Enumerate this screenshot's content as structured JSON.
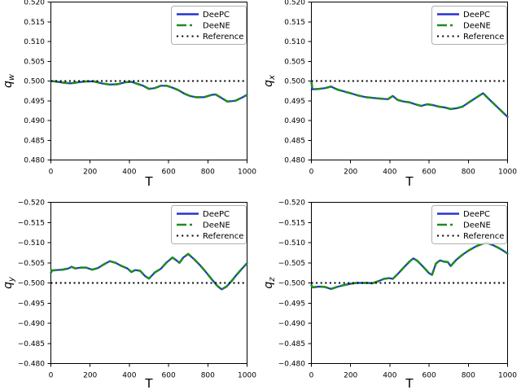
{
  "figure": {
    "xlabel": "T",
    "background": "#ffffff",
    "legend": {
      "position": "upper right",
      "entries": [
        {
          "label": "DeePC",
          "color": "#2434cf",
          "style": "solid"
        },
        {
          "label": "DeeNE",
          "color": "#1f8b24",
          "style": "dashed"
        },
        {
          "label": "Reference",
          "color": "#000000",
          "style": "dotted"
        }
      ]
    },
    "note": "DeePC and DeeNE trajectories overlap almost exactly in every subplot"
  },
  "chart_data": [
    {
      "type": "line",
      "id": "qw",
      "ylabel": {
        "base": "q",
        "sub": "w"
      },
      "xlabel": "T",
      "xlim": [
        0,
        1000
      ],
      "xticks": [
        0,
        200,
        400,
        600,
        800,
        1000
      ],
      "xtick_labels": [
        "0",
        "200",
        "400",
        "600",
        "800",
        "1000"
      ],
      "y_top": 0.52,
      "y_bottom": 0.48,
      "yticks": [
        0.52,
        0.515,
        0.51,
        0.505,
        0.5,
        0.495,
        0.49,
        0.485,
        0.48
      ],
      "ytick_labels": [
        "0.520",
        "0.515",
        "0.510",
        "0.505",
        "0.500",
        "0.495",
        "0.490",
        "0.485",
        "0.480"
      ],
      "reference_value": 0.5,
      "grid": false,
      "series": [
        {
          "name": "DeePC"
        },
        {
          "name": "DeeNE"
        }
      ],
      "x": [
        0,
        20,
        60,
        100,
        140,
        180,
        220,
        260,
        300,
        340,
        380,
        410,
        440,
        470,
        500,
        530,
        560,
        590,
        620,
        650,
        680,
        710,
        740,
        780,
        820,
        840,
        870,
        900,
        940,
        970,
        1000
      ],
      "trajectory": [
        0.5,
        0.4999,
        0.4996,
        0.4994,
        0.4997,
        0.4999,
        0.4999,
        0.4994,
        0.4991,
        0.4992,
        0.4997,
        0.4998,
        0.4993,
        0.4988,
        0.498,
        0.4982,
        0.4988,
        0.4988,
        0.4983,
        0.4977,
        0.4968,
        0.4962,
        0.4959,
        0.4959,
        0.4965,
        0.4966,
        0.4957,
        0.4948,
        0.495,
        0.4957,
        0.4965
      ]
    },
    {
      "type": "line",
      "id": "qx",
      "ylabel": {
        "base": "q",
        "sub": "x"
      },
      "xlabel": "T",
      "xlim": [
        0,
        1000
      ],
      "xticks": [
        0,
        200,
        400,
        600,
        800,
        1000
      ],
      "xtick_labels": [
        "0",
        "200",
        "400",
        "600",
        "800",
        "1000"
      ],
      "y_top": 0.52,
      "y_bottom": 0.48,
      "yticks": [
        0.52,
        0.515,
        0.51,
        0.505,
        0.5,
        0.495,
        0.49,
        0.485,
        0.48
      ],
      "ytick_labels": [
        "0.520",
        "0.515",
        "0.510",
        "0.505",
        "0.500",
        "0.495",
        "0.490",
        "0.485",
        "0.480"
      ],
      "reference_value": 0.5,
      "grid": false,
      "series": [
        {
          "name": "DeePC"
        },
        {
          "name": "DeeNE"
        }
      ],
      "x": [
        0,
        5,
        40,
        70,
        100,
        130,
        170,
        200,
        240,
        280,
        320,
        360,
        390,
        415,
        440,
        470,
        500,
        530,
        560,
        590,
        620,
        650,
        680,
        710,
        740,
        770,
        800,
        840,
        875,
        910,
        950,
        975,
        1000
      ],
      "trajectory": [
        0.5,
        0.4979,
        0.498,
        0.4982,
        0.4986,
        0.4979,
        0.4973,
        0.4969,
        0.4963,
        0.4959,
        0.4957,
        0.4955,
        0.4954,
        0.4962,
        0.4952,
        0.4948,
        0.4946,
        0.4941,
        0.4937,
        0.4941,
        0.4939,
        0.4935,
        0.4933,
        0.4929,
        0.4931,
        0.4935,
        0.4945,
        0.4958,
        0.4969,
        0.4952,
        0.4933,
        0.4921,
        0.4909
      ]
    },
    {
      "type": "line",
      "id": "qy",
      "ylabel": {
        "base": "q",
        "sub": "y"
      },
      "xlabel": "T",
      "xlim": [
        0,
        1000
      ],
      "xticks": [
        0,
        200,
        400,
        600,
        800,
        1000
      ],
      "xtick_labels": [
        "0",
        "200",
        "400",
        "600",
        "800",
        "1000"
      ],
      "y_top": -0.52,
      "y_bottom": -0.48,
      "yticks": [
        -0.52,
        -0.515,
        -0.51,
        -0.505,
        -0.5,
        -0.495,
        -0.49,
        -0.485,
        -0.48
      ],
      "ytick_labels": [
        "−0.520",
        "−0.515",
        "−0.510",
        "−0.505",
        "−0.500",
        "−0.495",
        "−0.490",
        "−0.485",
        "−0.480"
      ],
      "reference_value": -0.5,
      "grid": false,
      "series": [
        {
          "name": "DeePC"
        },
        {
          "name": "DeeNE"
        }
      ],
      "x": [
        0,
        5,
        30,
        60,
        90,
        105,
        125,
        150,
        180,
        210,
        240,
        270,
        300,
        330,
        360,
        390,
        410,
        430,
        455,
        480,
        500,
        530,
        560,
        590,
        620,
        640,
        655,
        675,
        700,
        730,
        760,
        790,
        820,
        850,
        870,
        895,
        920,
        950,
        975,
        1000
      ],
      "trajectory": [
        -0.5025,
        -0.5031,
        -0.5032,
        -0.5033,
        -0.5036,
        -0.504,
        -0.5036,
        -0.5038,
        -0.5038,
        -0.5033,
        -0.5037,
        -0.5046,
        -0.5054,
        -0.505,
        -0.5042,
        -0.5036,
        -0.5027,
        -0.5032,
        -0.503,
        -0.5017,
        -0.5011,
        -0.5026,
        -0.5035,
        -0.5051,
        -0.5063,
        -0.5056,
        -0.505,
        -0.5063,
        -0.5072,
        -0.5059,
        -0.5044,
        -0.5027,
        -0.5009,
        -0.4992,
        -0.4984,
        -0.4991,
        -0.5004,
        -0.5022,
        -0.5036,
        -0.5049
      ]
    },
    {
      "type": "line",
      "id": "qz",
      "ylabel": {
        "base": "q",
        "sub": "z"
      },
      "xlabel": "T",
      "xlim": [
        0,
        1000
      ],
      "xticks": [
        0,
        200,
        400,
        600,
        800,
        1000
      ],
      "xtick_labels": [
        "0",
        "200",
        "400",
        "600",
        "800",
        "1000"
      ],
      "y_top": -0.52,
      "y_bottom": -0.48,
      "yticks": [
        -0.52,
        -0.515,
        -0.51,
        -0.505,
        -0.5,
        -0.495,
        -0.49,
        -0.485,
        -0.48
      ],
      "ytick_labels": [
        "−0.520",
        "−0.515",
        "−0.510",
        "−0.505",
        "−0.500",
        "−0.495",
        "−0.490",
        "−0.485",
        "−0.480"
      ],
      "reference_value": -0.5,
      "grid": false,
      "series": [
        {
          "name": "DeePC"
        },
        {
          "name": "DeeNE"
        }
      ],
      "x": [
        0,
        5,
        40,
        70,
        100,
        130,
        160,
        200,
        230,
        260,
        290,
        310,
        340,
        370,
        395,
        415,
        440,
        470,
        500,
        520,
        540,
        570,
        600,
        615,
        635,
        655,
        675,
        695,
        710,
        740,
        770,
        800,
        840,
        870,
        895,
        920,
        950,
        975,
        1000
      ],
      "trajectory": [
        -0.4995,
        -0.4989,
        -0.4991,
        -0.499,
        -0.4985,
        -0.499,
        -0.4994,
        -0.4998,
        -0.5,
        -0.5,
        -0.5,
        -0.4999,
        -0.5004,
        -0.501,
        -0.5012,
        -0.501,
        -0.5022,
        -0.5038,
        -0.5053,
        -0.5061,
        -0.5055,
        -0.504,
        -0.5024,
        -0.502,
        -0.5048,
        -0.5056,
        -0.5053,
        -0.5052,
        -0.5042,
        -0.5058,
        -0.507,
        -0.508,
        -0.5091,
        -0.5097,
        -0.51,
        -0.5095,
        -0.5088,
        -0.5081,
        -0.5073
      ]
    }
  ]
}
